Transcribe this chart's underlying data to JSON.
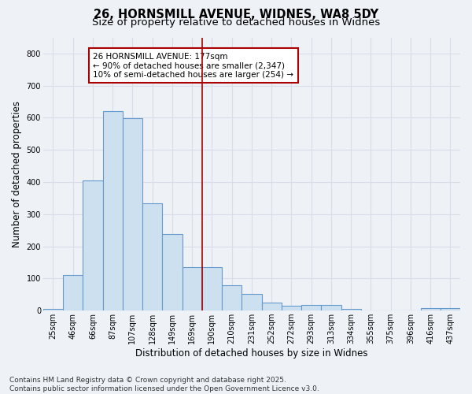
{
  "title_line1": "26, HORNSMILL AVENUE, WIDNES, WA8 5DY",
  "title_line2": "Size of property relative to detached houses in Widnes",
  "xlabel": "Distribution of detached houses by size in Widnes",
  "ylabel": "Number of detached properties",
  "bar_labels": [
    "25sqm",
    "46sqm",
    "66sqm",
    "87sqm",
    "107sqm",
    "128sqm",
    "149sqm",
    "169sqm",
    "190sqm",
    "210sqm",
    "231sqm",
    "252sqm",
    "272sqm",
    "293sqm",
    "313sqm",
    "334sqm",
    "355sqm",
    "375sqm",
    "396sqm",
    "416sqm",
    "437sqm"
  ],
  "bar_values": [
    5,
    110,
    405,
    620,
    598,
    335,
    238,
    135,
    135,
    80,
    53,
    25,
    15,
    17,
    17,
    5,
    0,
    0,
    0,
    7,
    8
  ],
  "bar_color": "#cce0f0",
  "bar_edgecolor": "#6699cc",
  "vline_index": 7,
  "vline_color": "#aa0000",
  "annotation_text": "26 HORNSMILL AVENUE: 177sqm\n← 90% of detached houses are smaller (2,347)\n10% of semi-detached houses are larger (254) →",
  "annotation_box_facecolor": "#ffffff",
  "annotation_box_edgecolor": "#aa0000",
  "ylim": [
    0,
    850
  ],
  "yticks": [
    0,
    100,
    200,
    300,
    400,
    500,
    600,
    700,
    800
  ],
  "footnote": "Contains HM Land Registry data © Crown copyright and database right 2025.\nContains public sector information licensed under the Open Government Licence v3.0.",
  "bg_color": "#eef2f7",
  "plot_bg_color": "#eef2f7",
  "grid_color": "#d8dde8",
  "title_fontsize": 10.5,
  "subtitle_fontsize": 9.5,
  "tick_fontsize": 7,
  "label_fontsize": 8.5,
  "footnote_fontsize": 6.5,
  "annotation_fontsize": 7.5
}
